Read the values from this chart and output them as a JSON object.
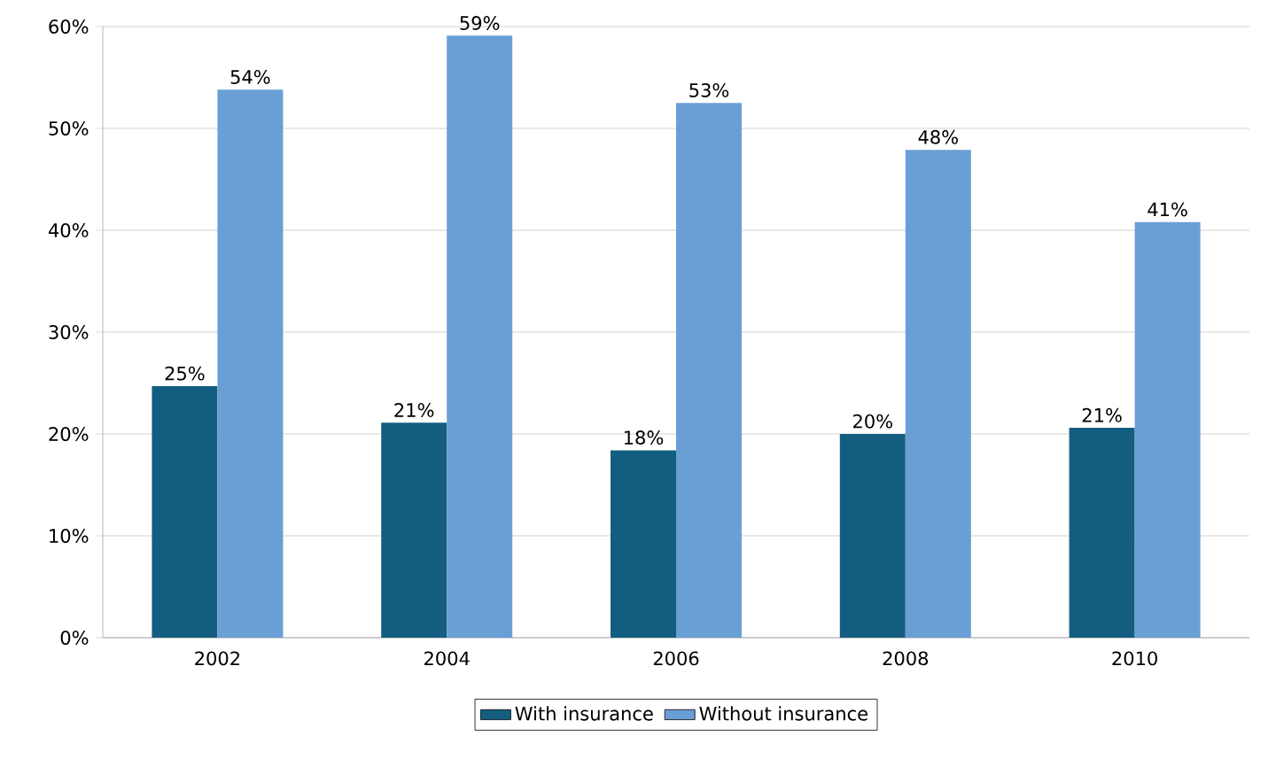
{
  "chart_data": {
    "type": "bar",
    "categories": [
      "2002",
      "2004",
      "2006",
      "2008",
      "2010"
    ],
    "series": [
      {
        "name": "With insurance",
        "color": "#135e80",
        "values": [
          24.7,
          21.1,
          18.4,
          20.0,
          20.6
        ],
        "value_labels": [
          "25%",
          "21%",
          "18%",
          "20%",
          "21%"
        ]
      },
      {
        "name": "Without insurance",
        "color": "#6a9fd6",
        "values": [
          53.8,
          59.1,
          52.5,
          47.9,
          40.8
        ],
        "value_labels": [
          "54%",
          "59%",
          "53%",
          "48%",
          "41%"
        ]
      }
    ],
    "ylim": [
      0,
      60
    ],
    "yticks": [
      {
        "value": 0,
        "label": "0%"
      },
      {
        "value": 10,
        "label": "10%"
      },
      {
        "value": 20,
        "label": "20%"
      },
      {
        "value": 30,
        "label": "30%"
      },
      {
        "value": 40,
        "label": "40%"
      },
      {
        "value": 50,
        "label": "50%"
      },
      {
        "value": 60,
        "label": "60%"
      }
    ],
    "grid": "y",
    "legend": "bottom"
  }
}
